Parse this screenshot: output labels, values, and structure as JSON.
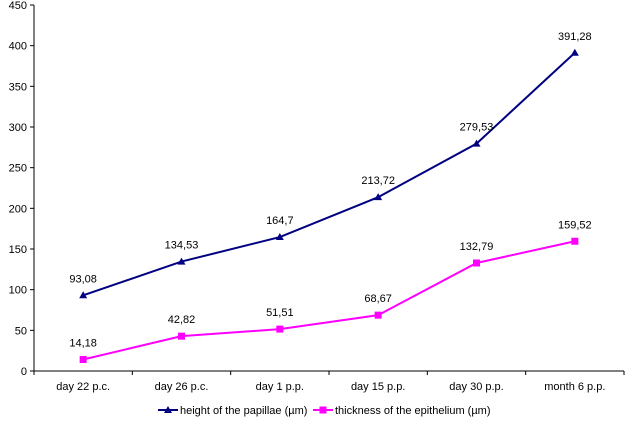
{
  "chart_data": {
    "type": "line",
    "categories": [
      "day 22 p.c.",
      "day 26 p.c.",
      "day 1 p.p.",
      "day 15 p.p.",
      "day 30 p.p.",
      "month 6 p.p."
    ],
    "series": [
      {
        "name": "height of the papillae (µm)",
        "values": [
          93.08,
          134.53,
          164.7,
          213.72,
          279.53,
          391.28
        ],
        "labels": [
          "93,08",
          "134,53",
          "164,7",
          "213,72",
          "279,53",
          "391,28"
        ],
        "color": "#000080",
        "marker": "triangle"
      },
      {
        "name": "thickness of the epithelium (µm)",
        "values": [
          14.18,
          42.82,
          51.51,
          68.67,
          132.79,
          159.52
        ],
        "labels": [
          "14,18",
          "42,82",
          "51,51",
          "68,67",
          "132,79",
          "159,52"
        ],
        "color": "#ff00ff",
        "marker": "square"
      }
    ],
    "ylim": [
      0,
      450
    ],
    "yticks": [
      0,
      50,
      100,
      150,
      200,
      250,
      300,
      350,
      400,
      450
    ],
    "grid": false,
    "legend_position": "bottom"
  }
}
